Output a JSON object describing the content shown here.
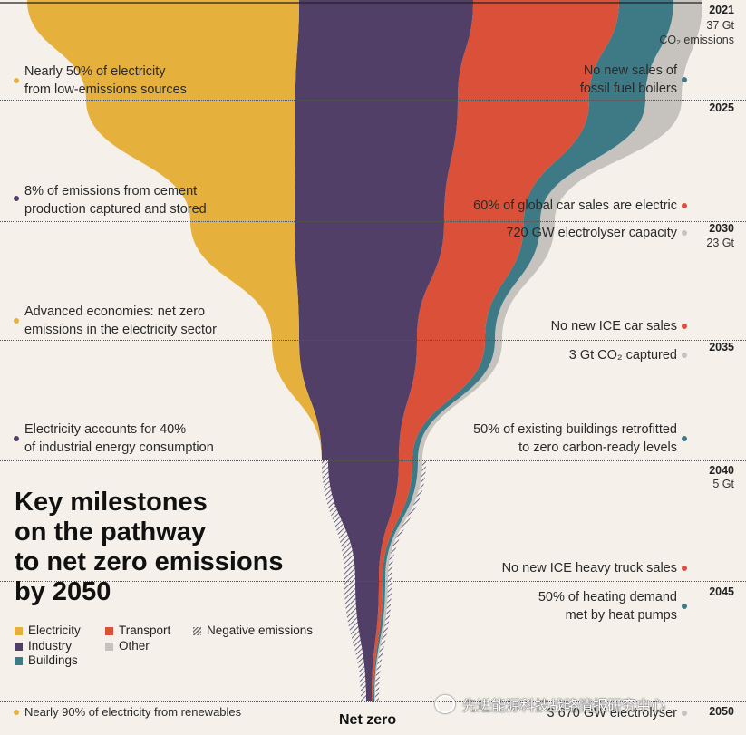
{
  "chart_data": {
    "type": "area",
    "title": "Key milestones\non the pathway\nto net zero emissions\nby 2050",
    "x": [
      2021,
      2025,
      2030,
      2035,
      2040,
      2045,
      2050
    ],
    "series": [
      {
        "name": "Electricity",
        "color": "#e6b03d"
      },
      {
        "name": "Industry",
        "color": "#523f67"
      },
      {
        "name": "Transport",
        "color": "#db5038"
      },
      {
        "name": "Buildings",
        "color": "#3e7986"
      },
      {
        "name": "Other",
        "color": "#c6c3be"
      },
      {
        "name": "Negative emissions",
        "pattern": "hatched"
      }
    ],
    "totals": [
      {
        "year": "2021",
        "value": "37 Gt",
        "unit": "CO₂ emissions"
      },
      {
        "year": "2030",
        "value": "23 Gt"
      },
      {
        "year": "2040",
        "value": "5 Gt"
      }
    ],
    "end_label": "Net zero"
  },
  "years": [
    "2021",
    "2025",
    "2030",
    "2035",
    "2040",
    "2045",
    "2050"
  ],
  "emissions_2021": [
    "37 Gt",
    "CO₂ emissions"
  ],
  "emissions_2030": "23 Gt",
  "emissions_2040": "5 Gt",
  "left_notes": [
    {
      "text": "Nearly 50% of electricity\nfrom low-emissions sources",
      "color": "#e6b03d"
    },
    {
      "text": "8% of emissions from cement\nproduction captured and stored",
      "color": "#523f67"
    },
    {
      "text": "Advanced economies: net zero\nemissions in the electricity sector",
      "color": "#e6b03d"
    },
    {
      "text": "Electricity accounts for 40%\nof industrial energy consumption",
      "color": "#523f67"
    },
    {
      "text": "Nearly 90% of electricity from renewables",
      "color": "#e6b03d"
    }
  ],
  "right_notes": [
    {
      "text": "No new sales of\nfossil fuel boilers",
      "color": "#3e7986"
    },
    {
      "text": "60% of global car sales are electric",
      "color": "#db5038"
    },
    {
      "text": "720 GW electrolyser capacity",
      "color": "#c6c3be"
    },
    {
      "text": "No new ICE car sales",
      "color": "#db5038"
    },
    {
      "text": "3 Gt CO₂ captured",
      "color": "#c6c3be"
    },
    {
      "text": "50% of existing buildings retrofitted\nto zero carbon-ready levels",
      "color": "#3e7986"
    },
    {
      "text": "No new ICE heavy truck sales",
      "color": "#db5038"
    },
    {
      "text": "50% of heating demand\nmet by heat pumps",
      "color": "#3e7986"
    },
    {
      "text": "3 670 GW electrolyser",
      "color": "#c6c3be"
    }
  ],
  "legend": [
    "Electricity",
    "Transport",
    "Negative emissions",
    "Industry",
    "Other",
    "Buildings"
  ],
  "watermark": "先进能源科技战略情报研究中心"
}
